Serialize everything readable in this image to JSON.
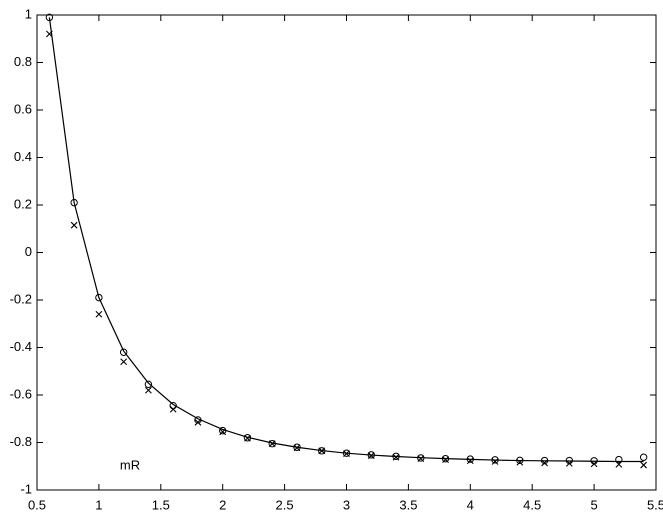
{
  "chart_data": {
    "type": "line",
    "annotation": "mR",
    "x": [
      0.6,
      0.8,
      1.0,
      1.2,
      1.4,
      1.6,
      1.8,
      2.0,
      2.2,
      2.4,
      2.6,
      2.8,
      3.0,
      3.2,
      3.4,
      3.6,
      3.8,
      4.0,
      4.2,
      4.4,
      4.6,
      4.8,
      5.0,
      5.2,
      5.4
    ],
    "series": [
      {
        "marker": "line",
        "color": "#000000",
        "values": [
          0.99,
          0.21,
          -0.19,
          -0.415,
          -0.55,
          -0.64,
          -0.7,
          -0.745,
          -0.778,
          -0.802,
          -0.82,
          -0.834,
          -0.845,
          -0.853,
          -0.859,
          -0.864,
          -0.868,
          -0.871,
          -0.874,
          -0.876,
          -0.877,
          -0.878,
          -0.879,
          -0.88,
          -0.88
        ]
      },
      {
        "marker": "o",
        "color": "#000000",
        "values": [
          0.99,
          0.21,
          -0.19,
          -0.42,
          -0.555,
          -0.645,
          -0.705,
          -0.75,
          -0.78,
          -0.805,
          -0.82,
          -0.835,
          -0.845,
          -0.852,
          -0.858,
          -0.865,
          -0.868,
          -0.87,
          -0.873,
          -0.875,
          -0.876,
          -0.876,
          -0.877,
          -0.872,
          -0.862
        ]
      },
      {
        "marker": "x",
        "color": "#000000",
        "values": [
          0.92,
          0.115,
          -0.26,
          -0.46,
          -0.58,
          -0.66,
          -0.715,
          -0.755,
          -0.782,
          -0.805,
          -0.822,
          -0.835,
          -0.847,
          -0.855,
          -0.862,
          -0.868,
          -0.872,
          -0.877,
          -0.88,
          -0.883,
          -0.886,
          -0.888,
          -0.89,
          -0.892,
          -0.895
        ]
      }
    ],
    "xlim": [
      0.5,
      5.5
    ],
    "xticks": [
      0.5,
      1,
      1.5,
      2,
      2.5,
      3,
      3.5,
      4,
      4.5,
      5,
      5.5
    ],
    "ylim": [
      -1,
      1
    ],
    "yticks": [
      -1,
      -0.8,
      -0.6,
      -0.4,
      -0.2,
      0,
      0.2,
      0.4,
      0.6,
      0.8,
      1
    ],
    "grid": false
  }
}
